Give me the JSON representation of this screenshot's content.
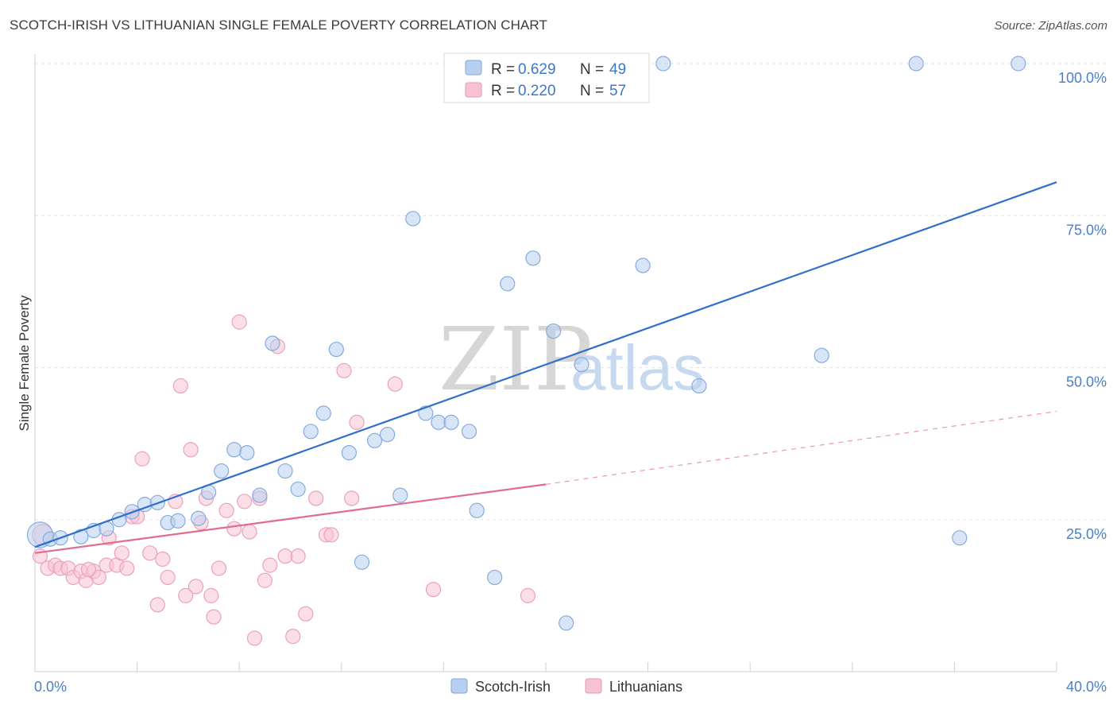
{
  "title": "SCOTCH-IRISH VS LITHUANIAN SINGLE FEMALE POVERTY CORRELATION CHART",
  "source": "Source: ZipAtlas.com",
  "watermark": {
    "zip": "ZIP",
    "atlas": "atlas"
  },
  "colors": {
    "blue": "#4a7fc9",
    "blue_fill": "#b8d0f0",
    "pink": "#e36a93",
    "pink_fill": "#f7c2d2",
    "line_blue": "#2f6fcc",
    "line_pink": "#e36a93"
  },
  "legend": {
    "rows": [
      {
        "r_label": "R =",
        "r_value": "0.629",
        "n_label": "N =",
        "n_value": "49"
      },
      {
        "r_label": "R =",
        "r_value": "0.220",
        "n_label": "N =",
        "n_value": "57"
      }
    ]
  },
  "bottom_legend": [
    "Scotch-Irish",
    "Lithuanians"
  ],
  "chart_data": {
    "type": "scatter",
    "title": "SCOTCH-IRISH VS LITHUANIAN SINGLE FEMALE POVERTY CORRELATION CHART",
    "xlabel": "",
    "ylabel": "Single Female Poverty",
    "xlim": [
      0,
      40
    ],
    "ylim": [
      0,
      100
    ],
    "x_tick_labels": [
      "0.0%",
      "40.0%"
    ],
    "y_ticks": [
      25,
      50,
      75,
      100
    ],
    "y_tick_labels": [
      "25.0%",
      "50.0%",
      "75.0%",
      "100.0%"
    ],
    "grid": true,
    "legend_position": "top-center",
    "series": [
      {
        "name": "Scotch-Irish",
        "r": 0.629,
        "n": 49,
        "trend": {
          "x": [
            0,
            40
          ],
          "y": [
            20.5,
            80.5
          ]
        },
        "points": [
          [
            0.2,
            22.5
          ],
          [
            0.6,
            21.8
          ],
          [
            1.0,
            22.0
          ],
          [
            1.8,
            22.2
          ],
          [
            2.3,
            23.2
          ],
          [
            2.8,
            23.5
          ],
          [
            3.3,
            25.0
          ],
          [
            3.8,
            26.3
          ],
          [
            4.3,
            27.5
          ],
          [
            4.8,
            27.8
          ],
          [
            5.2,
            24.5
          ],
          [
            5.6,
            24.8
          ],
          [
            6.4,
            25.2
          ],
          [
            6.8,
            29.5
          ],
          [
            7.3,
            33.0
          ],
          [
            7.8,
            36.5
          ],
          [
            8.3,
            36.0
          ],
          [
            8.8,
            29.0
          ],
          [
            9.3,
            54.0
          ],
          [
            9.8,
            33.0
          ],
          [
            10.3,
            30.0
          ],
          [
            10.8,
            39.5
          ],
          [
            11.3,
            42.5
          ],
          [
            11.8,
            53.0
          ],
          [
            12.3,
            36.0
          ],
          [
            12.8,
            18.0
          ],
          [
            13.3,
            38.0
          ],
          [
            13.8,
            39.0
          ],
          [
            14.3,
            29.0
          ],
          [
            14.8,
            74.5
          ],
          [
            15.3,
            42.5
          ],
          [
            15.8,
            41.0
          ],
          [
            16.3,
            41.0
          ],
          [
            17.0,
            39.5
          ],
          [
            17.3,
            26.5
          ],
          [
            18.0,
            15.5
          ],
          [
            18.5,
            63.8
          ],
          [
            19.5,
            68.0
          ],
          [
            20.3,
            56.0
          ],
          [
            20.8,
            8.0
          ],
          [
            21.4,
            50.5
          ],
          [
            22.0,
            100.0
          ],
          [
            23.8,
            66.8
          ],
          [
            24.6,
            100.0
          ],
          [
            26.0,
            47.0
          ],
          [
            30.8,
            52.0
          ],
          [
            34.5,
            100.0
          ],
          [
            36.2,
            22.0
          ],
          [
            38.5,
            100.0
          ]
        ]
      },
      {
        "name": "Lithuanians",
        "r": 0.22,
        "n": 57,
        "trend": {
          "x": [
            0,
            20
          ],
          "y": [
            19.5,
            30.8
          ]
        },
        "trend_extended": {
          "x": [
            20,
            40
          ],
          "y": [
            30.8,
            42.8
          ]
        },
        "points": [
          [
            0.2,
            19.0
          ],
          [
            0.5,
            17.0
          ],
          [
            0.8,
            17.5
          ],
          [
            1.0,
            17.0
          ],
          [
            1.3,
            17.0
          ],
          [
            1.5,
            15.5
          ],
          [
            1.8,
            16.5
          ],
          [
            2.0,
            15.0
          ],
          [
            2.3,
            16.5
          ],
          [
            2.5,
            15.5
          ],
          [
            2.8,
            17.5
          ],
          [
            2.9,
            22.0
          ],
          [
            3.2,
            17.5
          ],
          [
            3.4,
            19.5
          ],
          [
            3.6,
            17.0
          ],
          [
            3.8,
            25.5
          ],
          [
            4.0,
            25.5
          ],
          [
            4.2,
            35.0
          ],
          [
            4.5,
            19.5
          ],
          [
            4.8,
            11.0
          ],
          [
            5.0,
            18.5
          ],
          [
            5.2,
            15.5
          ],
          [
            5.5,
            28.0
          ],
          [
            5.7,
            47.0
          ],
          [
            5.9,
            12.5
          ],
          [
            6.1,
            36.5
          ],
          [
            6.3,
            14.0
          ],
          [
            6.5,
            24.5
          ],
          [
            6.7,
            28.5
          ],
          [
            6.9,
            12.5
          ],
          [
            7.0,
            9.0
          ],
          [
            7.2,
            17.0
          ],
          [
            7.5,
            26.5
          ],
          [
            7.8,
            23.5
          ],
          [
            8.0,
            57.5
          ],
          [
            8.2,
            28.0
          ],
          [
            8.4,
            23.0
          ],
          [
            8.6,
            5.5
          ],
          [
            8.8,
            28.5
          ],
          [
            9.0,
            15.0
          ],
          [
            9.2,
            17.5
          ],
          [
            9.5,
            53.5
          ],
          [
            9.8,
            19.0
          ],
          [
            10.1,
            5.8
          ],
          [
            10.3,
            19.0
          ],
          [
            10.6,
            9.5
          ],
          [
            11.0,
            28.5
          ],
          [
            11.4,
            22.5
          ],
          [
            11.6,
            22.5
          ],
          [
            12.1,
            49.5
          ],
          [
            12.4,
            28.5
          ],
          [
            12.6,
            41.0
          ],
          [
            14.1,
            47.3
          ],
          [
            15.6,
            13.5
          ],
          [
            19.3,
            12.5
          ],
          [
            0.3,
            22.5
          ],
          [
            2.1,
            16.8
          ]
        ]
      }
    ]
  }
}
